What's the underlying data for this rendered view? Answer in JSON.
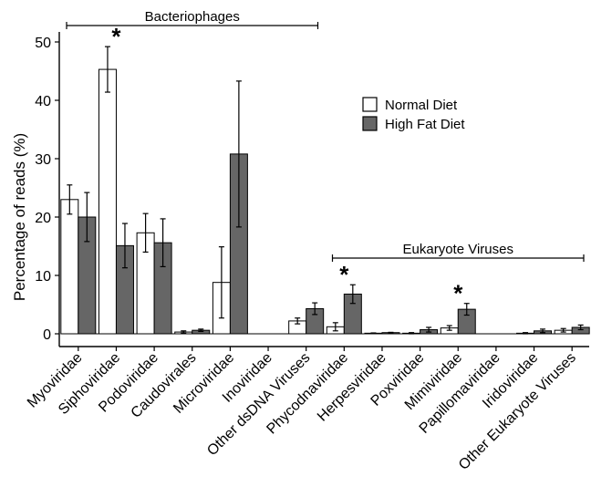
{
  "chart_data": {
    "type": "bar",
    "ylabel": "Percentage of reads (%)",
    "ylim": [
      0,
      52
    ],
    "yticks": [
      0,
      10,
      20,
      30,
      40,
      50
    ],
    "categories": [
      "Myoviridae",
      "Siphoviridae",
      "Podoviridae",
      "Caudovirales",
      "Microviridae",
      "Inoviridae",
      "Other dsDNA Viruses",
      "Phycodnaviridae",
      "Herpesviridae",
      "Poxviridae",
      "Mimiviridae",
      "Papillomaviridae",
      "Iridoviridae",
      "Other Eukaryote Viruses"
    ],
    "series": [
      {
        "name": "Normal Diet",
        "color": "#ffffff",
        "values": [
          23.0,
          45.3,
          17.3,
          0.3,
          8.8,
          0.0,
          2.2,
          1.2,
          0.1,
          0.1,
          1.0,
          0.0,
          0.1,
          0.6
        ],
        "errors": [
          2.5,
          3.9,
          3.3,
          0.2,
          6.1,
          0.0,
          0.5,
          0.7,
          0.05,
          0.1,
          0.4,
          0.0,
          0.1,
          0.3
        ]
      },
      {
        "name": "High Fat Diet",
        "color": "#666666",
        "values": [
          20.0,
          15.1,
          15.6,
          0.6,
          30.8,
          0.0,
          4.3,
          6.8,
          0.2,
          0.7,
          4.2,
          0.0,
          0.5,
          1.1
        ],
        "errors": [
          4.2,
          3.8,
          4.1,
          0.2,
          12.5,
          0.0,
          1.0,
          1.6,
          0.05,
          0.4,
          1.0,
          0.0,
          0.3,
          0.4
        ]
      }
    ],
    "significance": [
      {
        "category": "Siphoviridae",
        "label": "*"
      },
      {
        "category": "Phycodnaviridae",
        "label": "*"
      },
      {
        "category": "Mimiviridae",
        "label": "*"
      }
    ],
    "groups": [
      {
        "label": "Bacteriophages",
        "from": "Myoviridae",
        "to": "Other dsDNA Viruses"
      },
      {
        "label": "Eukaryote Viruses",
        "from": "Phycodnaviridae",
        "to": "Other Eukaryote Viruses"
      }
    ],
    "legend": {
      "position": "right",
      "entries": [
        "Normal Diet",
        "High Fat Diet"
      ]
    },
    "grid": false
  }
}
